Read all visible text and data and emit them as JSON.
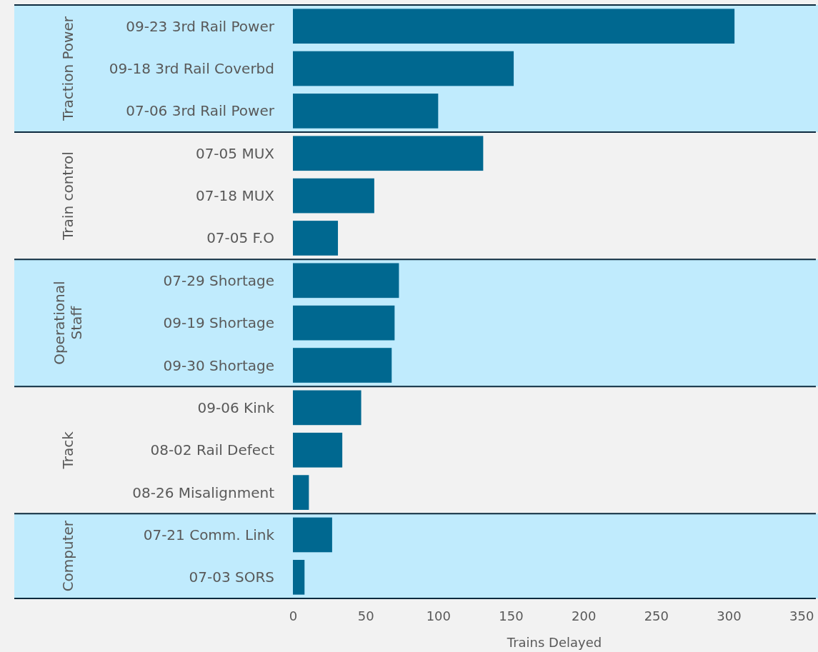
{
  "chart_data": {
    "type": "bar",
    "orientation": "horizontal",
    "xlabel": "Trains Delayed",
    "categories": [
      "09-23 3rd Rail Power",
      "09-18 3rd Rail Coverbd",
      "07-06 3rd Rail Power",
      "07-05 MUX",
      "07-18 MUX",
      "07-05 F.O",
      "07-29 Shortage",
      "09-19 Shortage",
      "09-30 Shortage",
      "09-06 Kink",
      "08-02 Rail Defect",
      "08-26 Misalignment",
      "07-21 Comm. Link",
      "07-03 SORS"
    ],
    "values": [
      304,
      152,
      100,
      131,
      56,
      31,
      73,
      70,
      68,
      47,
      34,
      11,
      27,
      8
    ],
    "color": "#006890",
    "xlim": [
      0,
      360
    ],
    "xticks": [
      0,
      50,
      100,
      150,
      200,
      250,
      300,
      350
    ],
    "grid": false,
    "annotations": [
      "Train control",
      "Track"
    ],
    "bands": [
      {
        "axis": "y",
        "from": "09-23 3rd Rail Power",
        "to": "07-06 3rd Rail Power",
        "label": "Traction Power",
        "color": "#c0ebfd"
      },
      {
        "axis": "y",
        "from": "07-29 Shortage",
        "to": "09-30 Shortage",
        "label": "Operational Staff",
        "color": "#c0ebfd"
      },
      {
        "axis": "y",
        "from": "07-21 Comm. Link",
        "to": "07-03 SORS",
        "label": "Computer",
        "color": "#c0ebfd"
      }
    ]
  }
}
